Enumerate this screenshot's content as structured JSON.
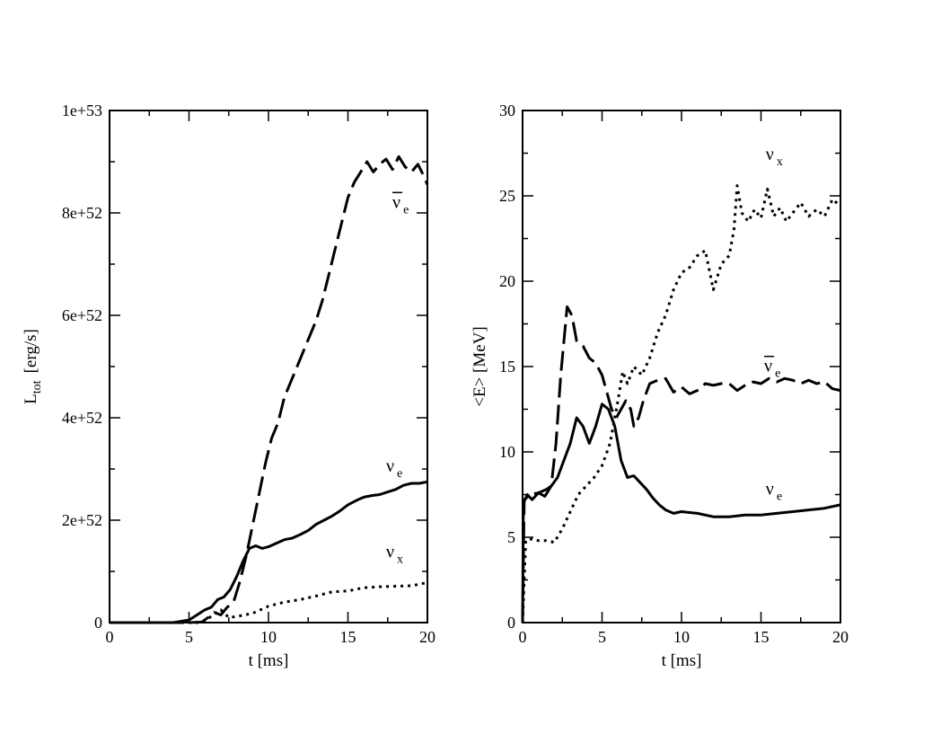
{
  "chart_data": [
    {
      "type": "line",
      "title": "",
      "xlabel": "t [ms]",
      "ylabel": {
        "main": "L",
        "sub": "tot",
        "unit": "[erg/s]"
      },
      "xlim": [
        0,
        20
      ],
      "ylim": [
        0,
        1e+53
      ],
      "xticks": [
        0,
        5,
        10,
        15,
        20
      ],
      "xtick_labels": [
        "0",
        "5",
        "10",
        "15",
        "20"
      ],
      "yticks": [
        0,
        2e+52,
        4e+52,
        6e+52,
        8e+52,
        1e+53
      ],
      "ytick_labels": [
        "0",
        "2e+52",
        "4e+52",
        "6e+52",
        "8e+52",
        "1e+53"
      ],
      "grid": false,
      "series": [
        {
          "name": "anti-nu_e",
          "style": "dashed",
          "label": {
            "main": "ν",
            "sub": "e",
            "bar": true,
            "at": [
              17.8,
              8.1e+52
            ]
          },
          "x": [
            0,
            5,
            5.8,
            6.2,
            6.6,
            7.0,
            7.4,
            7.8,
            8.2,
            8.6,
            9.0,
            9.4,
            9.8,
            10.2,
            10.6,
            11.0,
            11.4,
            11.8,
            12.2,
            12.6,
            13.0,
            13.4,
            13.8,
            14.2,
            14.6,
            15.0,
            15.4,
            15.8,
            16.2,
            16.6,
            17.0,
            17.4,
            17.8,
            18.2,
            18.6,
            19.0,
            19.4,
            19.8,
            20
          ],
          "y": [
            0,
            0,
            1e+50,
            1e+51,
            2e+51,
            1.5e+51,
            3e+51,
            4e+51,
            8e+51,
            1.3e+52,
            1.9e+52,
            2.5e+52,
            3.1e+52,
            3.6e+52,
            3.9e+52,
            4.4e+52,
            4.7e+52,
            5e+52,
            5.3e+52,
            5.6e+52,
            5.9e+52,
            6.3e+52,
            6.8e+52,
            7.3e+52,
            7.8e+52,
            8.3e+52,
            8.6e+52,
            8.8e+52,
            9e+52,
            8.8e+52,
            8.95e+52,
            9.05e+52,
            8.85e+52,
            9.1e+52,
            8.9e+52,
            8.8e+52,
            8.95e+52,
            8.7e+52,
            8.55e+52
          ]
        },
        {
          "name": "nu_e",
          "style": "solid",
          "label": {
            "main": "ν",
            "sub": "e",
            "bar": false,
            "at": [
              17.4,
              2.95e+52
            ]
          },
          "x": [
            0,
            4,
            5,
            5.5,
            6.0,
            6.4,
            6.8,
            7.2,
            7.6,
            8.0,
            8.4,
            8.8,
            9.2,
            9.6,
            10.0,
            10.5,
            11.0,
            11.5,
            12.0,
            12.5,
            13.0,
            13.5,
            14.0,
            14.5,
            15.0,
            15.5,
            16.0,
            16.5,
            17.0,
            17.5,
            18.0,
            18.5,
            19.0,
            19.5,
            20
          ],
          "y": [
            0,
            0,
            5e+50,
            1.5e+51,
            2.5e+51,
            3e+51,
            4.5e+51,
            5e+51,
            6.5e+51,
            9e+51,
            1.2e+52,
            1.45e+52,
            1.5e+52,
            1.45e+52,
            1.48e+52,
            1.55e+52,
            1.62e+52,
            1.65e+52,
            1.72e+52,
            1.8e+52,
            1.92e+52,
            2e+52,
            2.08e+52,
            2.18e+52,
            2.3e+52,
            2.38e+52,
            2.45e+52,
            2.48e+52,
            2.5e+52,
            2.55e+52,
            2.6e+52,
            2.68e+52,
            2.72e+52,
            2.72e+52,
            2.75e+52
          ]
        },
        {
          "name": "nu_x",
          "style": "dotted",
          "label": {
            "main": "ν",
            "sub": "x",
            "bar": false,
            "at": [
              17.4,
              1.27e+52
            ]
          },
          "x": [
            0,
            5.5,
            6,
            6.5,
            7,
            7.5,
            8,
            8.5,
            9,
            9.5,
            10,
            11,
            12,
            13,
            14,
            15,
            16,
            17,
            18,
            19,
            20
          ],
          "y": [
            0,
            0,
            3e+50,
            1.5e+51,
            2.5e+51,
            1e+51,
            1.2e+51,
            1.5e+51,
            1.8e+51,
            2.5e+51,
            3.2e+51,
            4e+51,
            4.5e+51,
            5.2e+51,
            6e+51,
            6.2e+51,
            6.8e+51,
            7e+51,
            7.1e+51,
            7.2e+51,
            7.8e+51
          ]
        }
      ]
    },
    {
      "type": "line",
      "title": "",
      "xlabel": "t [ms]",
      "ylabel": {
        "main": "<E> [MeV]"
      },
      "xlim": [
        0,
        20
      ],
      "ylim": [
        0,
        30
      ],
      "xticks": [
        0,
        5,
        10,
        15,
        20
      ],
      "xtick_labels": [
        "0",
        "5",
        "10",
        "15",
        "20"
      ],
      "yticks": [
        0,
        5,
        10,
        15,
        20,
        25,
        30
      ],
      "ytick_labels": [
        "0",
        "5",
        "10",
        "15",
        "20",
        "25",
        "30"
      ],
      "grid": false,
      "series": [
        {
          "name": "nu_x",
          "style": "dotted",
          "label": {
            "main": "ν",
            "sub": "x",
            "bar": false,
            "at": [
              15.3,
              27.1
            ]
          },
          "x": [
            0,
            0.2,
            0.6,
            1,
            1.5,
            2,
            2.5,
            3,
            3.5,
            4,
            4.5,
            5,
            5.5,
            6,
            6.3,
            6.6,
            7,
            7.5,
            8,
            8.5,
            9,
            9.5,
            10,
            10.5,
            11,
            11.5,
            12,
            12.5,
            13,
            13.3,
            13.5,
            13.8,
            14.2,
            14.6,
            15.0,
            15.4,
            15.8,
            16.2,
            16.6,
            17,
            17.5,
            18,
            18.5,
            19,
            19.5,
            20
          ],
          "y": [
            0,
            4.8,
            4.9,
            4.8,
            4.8,
            4.7,
            5.5,
            6.5,
            7.5,
            8,
            8.5,
            9.2,
            10.5,
            13,
            14.7,
            14.0,
            15.0,
            14.5,
            15.5,
            17,
            18,
            19.5,
            20.5,
            20.8,
            21.5,
            21.8,
            19.5,
            21.0,
            21.5,
            23,
            25.6,
            24.0,
            23.5,
            24.2,
            23.7,
            25.4,
            23.8,
            24.3,
            23.5,
            24.0,
            24.6,
            23.8,
            24.2,
            23.8,
            24.8,
            24.4
          ]
        },
        {
          "name": "anti-nu_e",
          "style": "dashed",
          "label": {
            "main": "ν",
            "sub": "e",
            "bar": true,
            "at": [
              15.2,
              14.7
            ]
          },
          "x": [
            0,
            0.1,
            0.5,
            1,
            1.5,
            1.8,
            2.1,
            2.4,
            2.8,
            3.1,
            3.4,
            3.8,
            4.2,
            4.6,
            5.0,
            5.3,
            5.6,
            5.9,
            6.2,
            6.5,
            6.8,
            7.0,
            7.3,
            7.6,
            8.0,
            8.5,
            9.0,
            9.5,
            10,
            10.5,
            11,
            11.5,
            12,
            12.5,
            13,
            13.5,
            14,
            14.5,
            15,
            15.5,
            16,
            16.5,
            17,
            17.5,
            18,
            18.5,
            19,
            19.5,
            20
          ],
          "y": [
            0,
            7.2,
            7.5,
            7.6,
            7.8,
            8.0,
            10.5,
            14.5,
            18.5,
            18.0,
            16.5,
            16.2,
            15.5,
            15.2,
            14.5,
            13.5,
            12.5,
            12.0,
            12.5,
            13.0,
            12.5,
            11.5,
            12.0,
            13.0,
            14.0,
            14.2,
            14.3,
            13.5,
            13.8,
            13.4,
            13.6,
            14.0,
            13.9,
            14.0,
            14.0,
            13.6,
            13.9,
            14.1,
            14.0,
            14.3,
            14.1,
            14.3,
            14.2,
            14.0,
            14.2,
            14.0,
            14.1,
            13.7,
            13.6
          ]
        },
        {
          "name": "nu_e",
          "style": "solid",
          "label": {
            "main": "ν",
            "sub": "e",
            "bar": false,
            "at": [
              15.3,
              7.5
            ]
          },
          "x": [
            0,
            0.05,
            0.3,
            0.6,
            1.0,
            1.4,
            1.8,
            2.2,
            2.6,
            3.0,
            3.4,
            3.8,
            4.2,
            4.6,
            5.0,
            5.4,
            5.8,
            6.2,
            6.6,
            7.0,
            7.4,
            7.8,
            8.2,
            8.6,
            9.0,
            9.5,
            10,
            11,
            12,
            13,
            14,
            15,
            16,
            17,
            18,
            19,
            20
          ],
          "y": [
            0,
            7.0,
            7.5,
            7.2,
            7.6,
            7.4,
            8.0,
            8.5,
            9.5,
            10.5,
            12.0,
            11.5,
            10.5,
            11.5,
            12.8,
            12.5,
            11.5,
            9.5,
            8.5,
            8.6,
            8.2,
            7.8,
            7.3,
            6.9,
            6.6,
            6.4,
            6.5,
            6.4,
            6.2,
            6.2,
            6.3,
            6.3,
            6.4,
            6.5,
            6.6,
            6.7,
            6.9
          ]
        }
      ]
    }
  ]
}
